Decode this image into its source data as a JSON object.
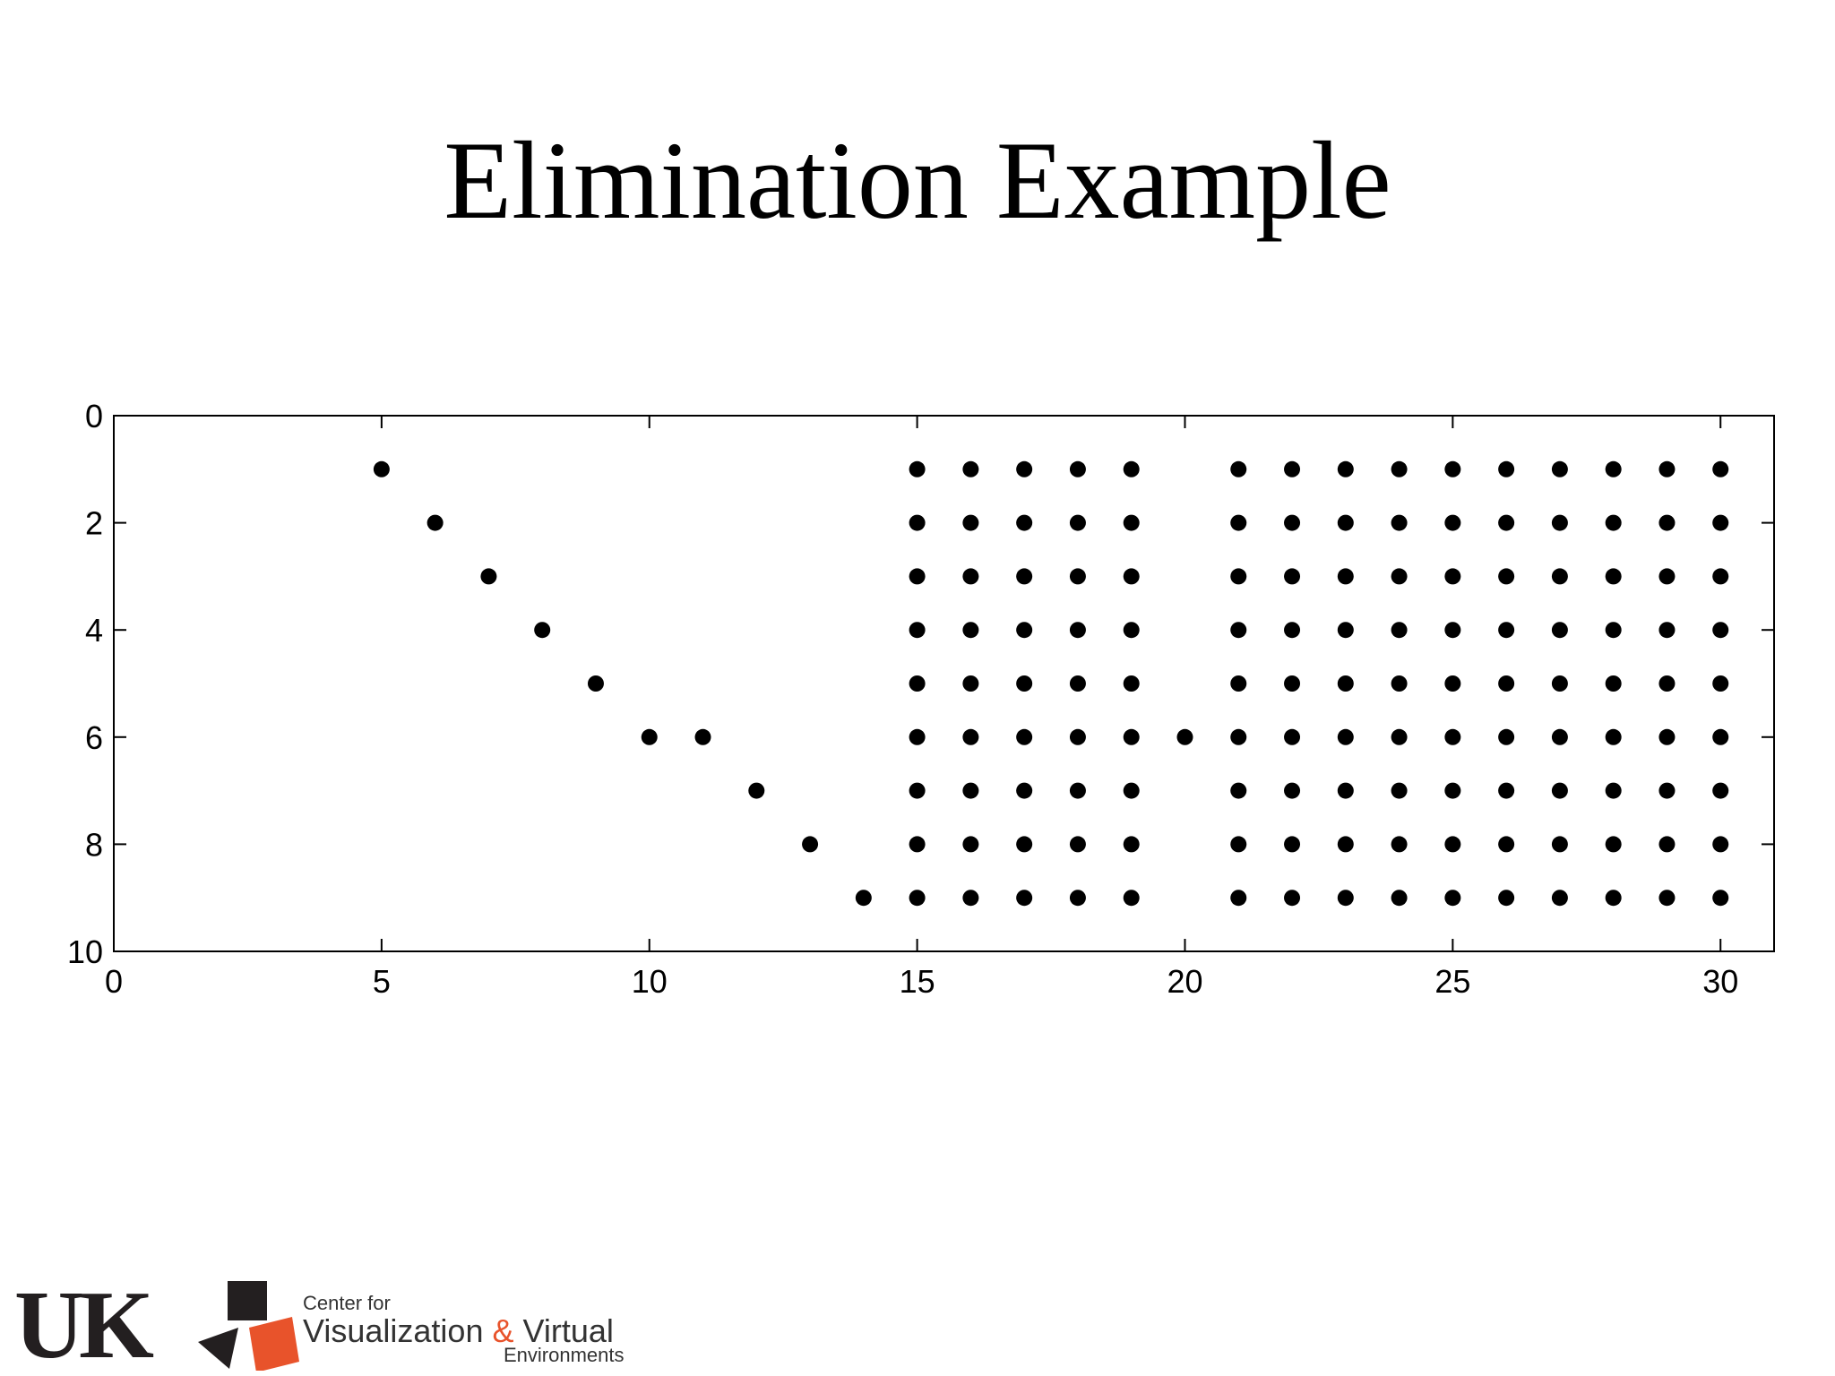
{
  "slide": {
    "title": "Elimination Example"
  },
  "chart_data": {
    "type": "scatter",
    "title": "",
    "xlabel": "",
    "ylabel": "",
    "xlim": [
      0,
      31
    ],
    "ylim": [
      0,
      10
    ],
    "y_inverted": true,
    "grid": false,
    "marker_color": "#000000",
    "x_ticks": [
      0,
      5,
      10,
      15,
      20,
      25,
      30
    ],
    "y_ticks": [
      0,
      2,
      4,
      6,
      8,
      10
    ],
    "points": [
      [
        5,
        1
      ],
      [
        6,
        2
      ],
      [
        7,
        3
      ],
      [
        8,
        4
      ],
      [
        9,
        5
      ],
      [
        10,
        6
      ],
      [
        11,
        6
      ],
      [
        12,
        7
      ],
      [
        13,
        8
      ],
      [
        14,
        9
      ],
      [
        15,
        1
      ],
      [
        15,
        2
      ],
      [
        15,
        3
      ],
      [
        15,
        4
      ],
      [
        15,
        5
      ],
      [
        15,
        6
      ],
      [
        15,
        7
      ],
      [
        15,
        8
      ],
      [
        15,
        9
      ],
      [
        16,
        1
      ],
      [
        16,
        2
      ],
      [
        16,
        3
      ],
      [
        16,
        4
      ],
      [
        16,
        5
      ],
      [
        16,
        6
      ],
      [
        16,
        7
      ],
      [
        16,
        8
      ],
      [
        16,
        9
      ],
      [
        17,
        1
      ],
      [
        17,
        2
      ],
      [
        17,
        3
      ],
      [
        17,
        4
      ],
      [
        17,
        5
      ],
      [
        17,
        6
      ],
      [
        17,
        7
      ],
      [
        17,
        8
      ],
      [
        17,
        9
      ],
      [
        18,
        1
      ],
      [
        18,
        2
      ],
      [
        18,
        3
      ],
      [
        18,
        4
      ],
      [
        18,
        5
      ],
      [
        18,
        6
      ],
      [
        18,
        7
      ],
      [
        18,
        8
      ],
      [
        18,
        9
      ],
      [
        19,
        1
      ],
      [
        19,
        2
      ],
      [
        19,
        3
      ],
      [
        19,
        4
      ],
      [
        19,
        5
      ],
      [
        19,
        6
      ],
      [
        19,
        7
      ],
      [
        19,
        8
      ],
      [
        19,
        9
      ],
      [
        20,
        6
      ],
      [
        21,
        1
      ],
      [
        21,
        2
      ],
      [
        21,
        3
      ],
      [
        21,
        4
      ],
      [
        21,
        5
      ],
      [
        21,
        6
      ],
      [
        21,
        7
      ],
      [
        21,
        8
      ],
      [
        21,
        9
      ],
      [
        22,
        1
      ],
      [
        22,
        2
      ],
      [
        22,
        3
      ],
      [
        22,
        4
      ],
      [
        22,
        5
      ],
      [
        22,
        6
      ],
      [
        22,
        7
      ],
      [
        22,
        8
      ],
      [
        22,
        9
      ],
      [
        23,
        1
      ],
      [
        23,
        2
      ],
      [
        23,
        3
      ],
      [
        23,
        4
      ],
      [
        23,
        5
      ],
      [
        23,
        6
      ],
      [
        23,
        7
      ],
      [
        23,
        8
      ],
      [
        23,
        9
      ],
      [
        24,
        1
      ],
      [
        24,
        2
      ],
      [
        24,
        3
      ],
      [
        24,
        4
      ],
      [
        24,
        5
      ],
      [
        24,
        6
      ],
      [
        24,
        7
      ],
      [
        24,
        8
      ],
      [
        24,
        9
      ],
      [
        25,
        1
      ],
      [
        25,
        2
      ],
      [
        25,
        3
      ],
      [
        25,
        4
      ],
      [
        25,
        5
      ],
      [
        25,
        6
      ],
      [
        25,
        7
      ],
      [
        25,
        8
      ],
      [
        25,
        9
      ],
      [
        26,
        1
      ],
      [
        26,
        2
      ],
      [
        26,
        3
      ],
      [
        26,
        4
      ],
      [
        26,
        5
      ],
      [
        26,
        6
      ],
      [
        26,
        7
      ],
      [
        26,
        8
      ],
      [
        26,
        9
      ],
      [
        27,
        1
      ],
      [
        27,
        2
      ],
      [
        27,
        3
      ],
      [
        27,
        4
      ],
      [
        27,
        5
      ],
      [
        27,
        6
      ],
      [
        27,
        7
      ],
      [
        27,
        8
      ],
      [
        27,
        9
      ],
      [
        28,
        1
      ],
      [
        28,
        2
      ],
      [
        28,
        3
      ],
      [
        28,
        4
      ],
      [
        28,
        5
      ],
      [
        28,
        6
      ],
      [
        28,
        7
      ],
      [
        28,
        8
      ],
      [
        28,
        9
      ],
      [
        29,
        1
      ],
      [
        29,
        2
      ],
      [
        29,
        3
      ],
      [
        29,
        4
      ],
      [
        29,
        5
      ],
      [
        29,
        6
      ],
      [
        29,
        7
      ],
      [
        29,
        8
      ],
      [
        29,
        9
      ],
      [
        30,
        1
      ],
      [
        30,
        2
      ],
      [
        30,
        3
      ],
      [
        30,
        4
      ],
      [
        30,
        5
      ],
      [
        30,
        6
      ],
      [
        30,
        7
      ],
      [
        30,
        8
      ],
      [
        30,
        9
      ]
    ]
  },
  "footer": {
    "uk_logo_text": "UK",
    "center_line1": "Center for",
    "center_line2_a": "Visualization",
    "center_line2_amp": "&",
    "center_line2_b": "Virtual",
    "center_line3": "Environments",
    "logo_colors": {
      "dark": "#231f20",
      "accent": "#e8532b",
      "text": "#333333"
    }
  }
}
